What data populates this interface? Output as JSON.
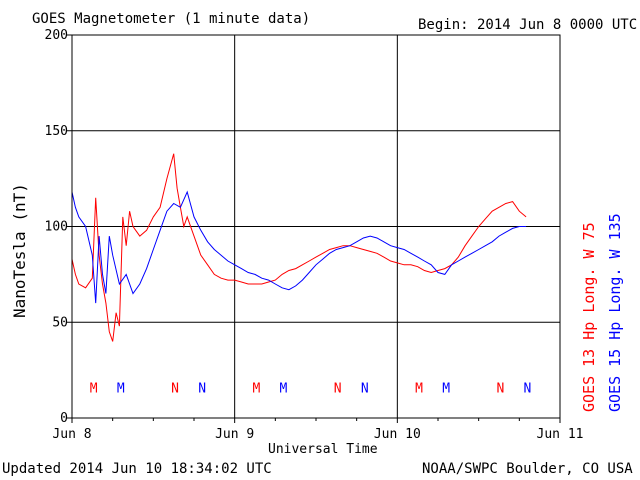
{
  "header": {
    "title": "GOES Magnetometer (1 minute data)",
    "begin": "Begin:  2014 Jun 8 0000 UTC"
  },
  "footer": {
    "updated": "Updated 2014 Jun 10 18:34:02 UTC",
    "source": "NOAA/SWPC Boulder, CO USA"
  },
  "chart_data": {
    "type": "line",
    "title": "GOES Magnetometer (1 minute data)",
    "xlabel": "Universal Time",
    "ylabel": "NanoTesla (nT)",
    "xlim": [
      0,
      72
    ],
    "ylim": [
      0,
      200
    ],
    "x_unit": "hours since 2014 Jun 8 0000 UTC",
    "x_ticks": [
      {
        "x": 0,
        "label": "Jun 8"
      },
      {
        "x": 24,
        "label": "Jun 9"
      },
      {
        "x": 48,
        "label": "Jun 10"
      },
      {
        "x": 72,
        "label": "Jun 11"
      }
    ],
    "y_ticks": [
      0,
      50,
      100,
      150,
      200
    ],
    "grid": true,
    "series": [
      {
        "name": "GOES 13 Hp  Long. W 75",
        "color": "#ff0000",
        "points": [
          [
            0,
            83
          ],
          [
            0.5,
            75
          ],
          [
            1,
            70
          ],
          [
            2,
            68
          ],
          [
            3,
            73
          ],
          [
            3.5,
            115
          ],
          [
            4,
            85
          ],
          [
            4.5,
            70
          ],
          [
            5,
            60
          ],
          [
            5.5,
            45
          ],
          [
            6,
            40
          ],
          [
            6.5,
            55
          ],
          [
            7,
            48
          ],
          [
            7.5,
            105
          ],
          [
            8,
            90
          ],
          [
            8.5,
            108
          ],
          [
            9,
            100
          ],
          [
            10,
            95
          ],
          [
            11,
            98
          ],
          [
            12,
            105
          ],
          [
            13,
            110
          ],
          [
            14,
            125
          ],
          [
            15,
            138
          ],
          [
            15.5,
            120
          ],
          [
            16,
            110
          ],
          [
            16.5,
            100
          ],
          [
            17,
            105
          ],
          [
            18,
            95
          ],
          [
            19,
            85
          ],
          [
            20,
            80
          ],
          [
            21,
            75
          ],
          [
            22,
            73
          ],
          [
            23,
            72
          ],
          [
            24,
            72
          ],
          [
            25,
            71
          ],
          [
            26,
            70
          ],
          [
            27,
            70
          ],
          [
            28,
            70
          ],
          [
            29,
            71
          ],
          [
            30,
            72
          ],
          [
            31,
            75
          ],
          [
            32,
            77
          ],
          [
            33,
            78
          ],
          [
            34,
            80
          ],
          [
            35,
            82
          ],
          [
            36,
            84
          ],
          [
            37,
            86
          ],
          [
            38,
            88
          ],
          [
            39,
            89
          ],
          [
            40,
            90
          ],
          [
            41,
            90
          ],
          [
            42,
            89
          ],
          [
            43,
            88
          ],
          [
            44,
            87
          ],
          [
            45,
            86
          ],
          [
            46,
            84
          ],
          [
            47,
            82
          ],
          [
            48,
            81
          ],
          [
            49,
            80
          ],
          [
            50,
            80
          ],
          [
            51,
            79
          ],
          [
            52,
            77
          ],
          [
            53,
            76
          ],
          [
            54,
            77
          ],
          [
            55,
            78
          ],
          [
            56,
            80
          ],
          [
            57,
            84
          ],
          [
            58,
            90
          ],
          [
            59,
            95
          ],
          [
            60,
            100
          ],
          [
            61,
            104
          ],
          [
            62,
            108
          ],
          [
            63,
            110
          ],
          [
            64,
            112
          ],
          [
            65,
            113
          ],
          [
            66,
            108
          ],
          [
            67,
            105
          ]
        ]
      },
      {
        "name": "GOES 15 Hp  Long. W 135",
        "color": "#0000ff",
        "points": [
          [
            0,
            118
          ],
          [
            0.5,
            110
          ],
          [
            1,
            105
          ],
          [
            2,
            100
          ],
          [
            3,
            85
          ],
          [
            3.5,
            60
          ],
          [
            4,
            95
          ],
          [
            4.5,
            75
          ],
          [
            5,
            65
          ],
          [
            5.5,
            95
          ],
          [
            6,
            85
          ],
          [
            7,
            70
          ],
          [
            8,
            75
          ],
          [
            9,
            65
          ],
          [
            10,
            70
          ],
          [
            11,
            78
          ],
          [
            12,
            88
          ],
          [
            13,
            98
          ],
          [
            14,
            108
          ],
          [
            15,
            112
          ],
          [
            16,
            110
          ],
          [
            17,
            118
          ],
          [
            18,
            105
          ],
          [
            19,
            98
          ],
          [
            20,
            92
          ],
          [
            21,
            88
          ],
          [
            22,
            85
          ],
          [
            23,
            82
          ],
          [
            24,
            80
          ],
          [
            25,
            78
          ],
          [
            26,
            76
          ],
          [
            27,
            75
          ],
          [
            28,
            73
          ],
          [
            29,
            72
          ],
          [
            30,
            70
          ],
          [
            31,
            68
          ],
          [
            32,
            67
          ],
          [
            33,
            69
          ],
          [
            34,
            72
          ],
          [
            35,
            76
          ],
          [
            36,
            80
          ],
          [
            37,
            83
          ],
          [
            38,
            86
          ],
          [
            39,
            88
          ],
          [
            40,
            89
          ],
          [
            41,
            90
          ],
          [
            42,
            92
          ],
          [
            43,
            94
          ],
          [
            44,
            95
          ],
          [
            45,
            94
          ],
          [
            46,
            92
          ],
          [
            47,
            90
          ],
          [
            48,
            89
          ],
          [
            49,
            88
          ],
          [
            50,
            86
          ],
          [
            51,
            84
          ],
          [
            52,
            82
          ],
          [
            53,
            80
          ],
          [
            54,
            76
          ],
          [
            55,
            75
          ],
          [
            56,
            80
          ],
          [
            57,
            82
          ],
          [
            58,
            84
          ],
          [
            59,
            86
          ],
          [
            60,
            88
          ],
          [
            61,
            90
          ],
          [
            62,
            92
          ],
          [
            63,
            95
          ],
          [
            64,
            97
          ],
          [
            65,
            99
          ],
          [
            66,
            100
          ],
          [
            67,
            100
          ]
        ]
      }
    ],
    "markers": [
      {
        "label": "M",
        "x": 3.2,
        "color": "#ff0000"
      },
      {
        "label": "M",
        "x": 7.2,
        "color": "#0000ff"
      },
      {
        "label": "N",
        "x": 15.2,
        "color": "#ff0000"
      },
      {
        "label": "N",
        "x": 19.2,
        "color": "#0000ff"
      },
      {
        "label": "M",
        "x": 27.2,
        "color": "#ff0000"
      },
      {
        "label": "M",
        "x": 31.2,
        "color": "#0000ff"
      },
      {
        "label": "N",
        "x": 39.2,
        "color": "#ff0000"
      },
      {
        "label": "N",
        "x": 43.2,
        "color": "#0000ff"
      },
      {
        "label": "M",
        "x": 51.2,
        "color": "#ff0000"
      },
      {
        "label": "M",
        "x": 55.2,
        "color": "#0000ff"
      },
      {
        "label": "N",
        "x": 63.2,
        "color": "#ff0000"
      },
      {
        "label": "N",
        "x": 67.2,
        "color": "#0000ff"
      }
    ],
    "marker_y": 16
  }
}
